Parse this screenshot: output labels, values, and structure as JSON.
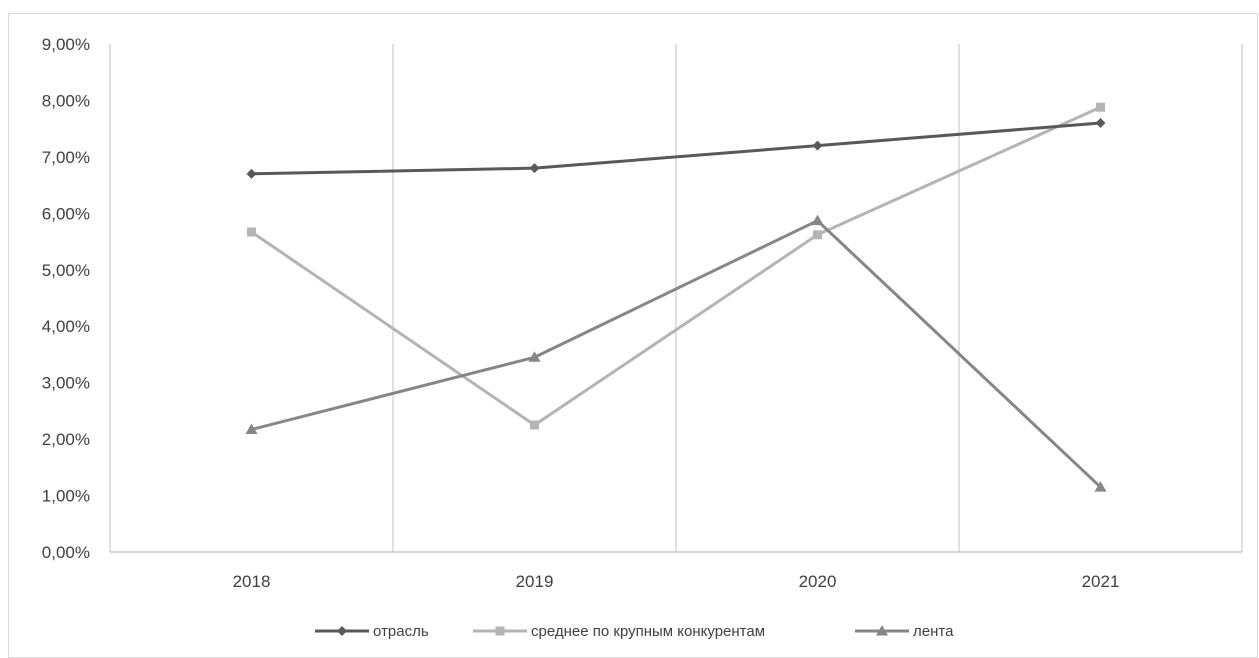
{
  "chart_data": {
    "type": "line",
    "title": "",
    "xlabel": "",
    "ylabel": "",
    "categories": [
      "2018",
      "2019",
      "2020",
      "2021"
    ],
    "y_tick_labels": [
      "0,00%",
      "1,00%",
      "2,00%",
      "3,00%",
      "4,00%",
      "5,00%",
      "6,00%",
      "7,00%",
      "8,00%",
      "9,00%"
    ],
    "ylim": [
      0,
      9
    ],
    "y_unit": "%",
    "grid": "vertical",
    "legend_position": "bottom",
    "series": [
      {
        "name": "отрасль",
        "values": [
          6.7,
          6.8,
          7.2,
          7.6
        ],
        "color": "#595959",
        "marker": "diamond"
      },
      {
        "name": "среднее по крупным конкурентам",
        "values": [
          5.67,
          2.25,
          5.62,
          7.88
        ],
        "color": "#b4b4b4",
        "marker": "square"
      },
      {
        "name": "лента",
        "values": [
          2.17,
          3.45,
          5.87,
          1.15
        ],
        "color": "#868686",
        "marker": "triangle"
      }
    ]
  }
}
